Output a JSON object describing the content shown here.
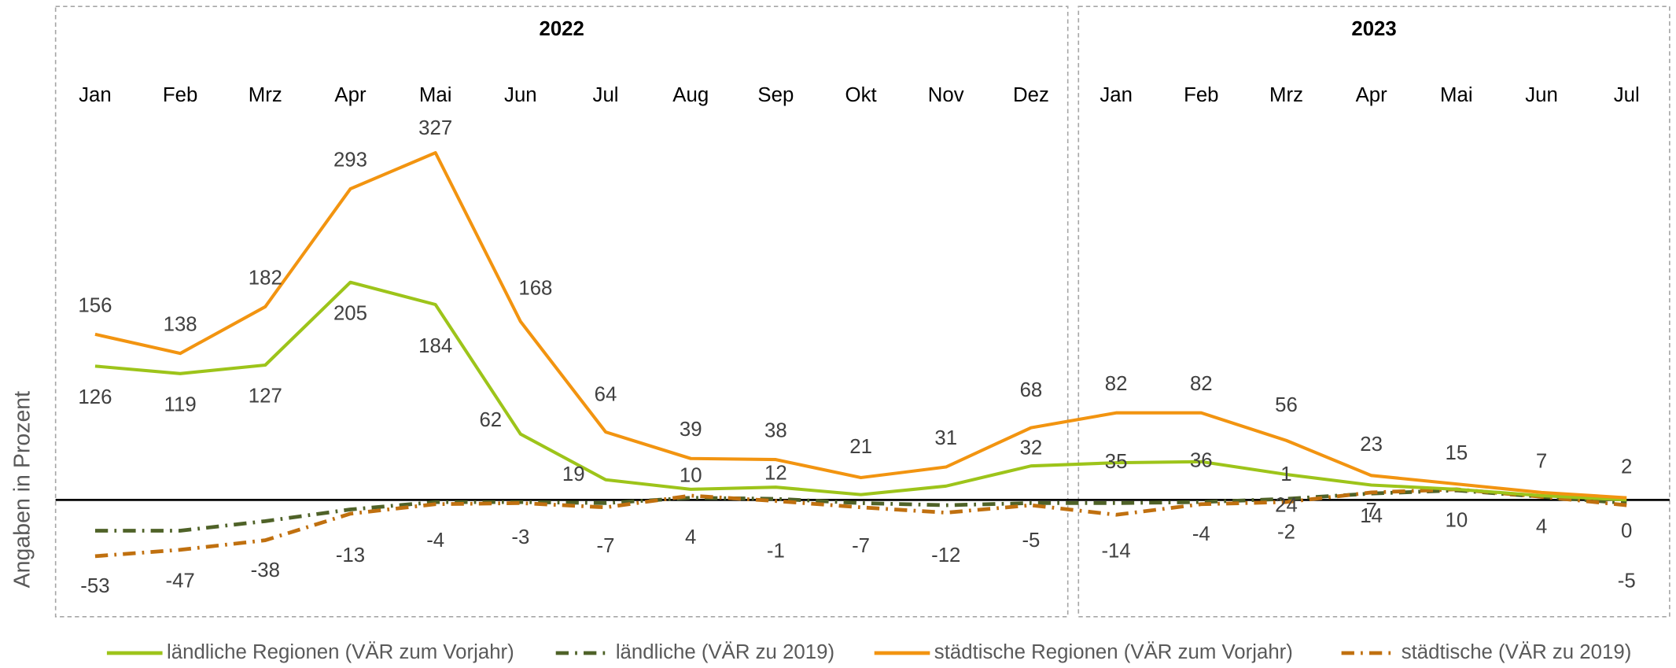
{
  "chart_data": {
    "type": "line",
    "y_axis_label": "Angaben in Prozent",
    "groups": [
      {
        "name": "2022",
        "categories": [
          "Jan",
          "Feb",
          "Mrz",
          "Apr",
          "Mai",
          "Jun",
          "Jul",
          "Aug",
          "Sep",
          "Okt",
          "Nov",
          "Dez"
        ]
      },
      {
        "name": "2023",
        "categories": [
          "Jan",
          "Feb",
          "Mrz",
          "Apr",
          "Mai",
          "Jun",
          "Jul"
        ]
      }
    ],
    "ylim": [
      -110,
      340
    ],
    "series": [
      {
        "name": "ländliche Regionen (VÄR zum Vorjahr)",
        "color": "#9dc41a",
        "dash": "solid",
        "values": [
          126,
          119,
          127,
          205,
          184,
          62,
          19,
          10,
          12,
          5,
          13,
          32,
          35,
          36,
          24,
          14,
          10,
          4,
          0
        ],
        "value_labels": [
          "126",
          "119",
          "127",
          "205",
          "184",
          "62",
          "19",
          "10",
          "12",
          null,
          null,
          "32",
          "35",
          "36",
          "24",
          "14",
          "10",
          "4",
          "0"
        ]
      },
      {
        "name": "ländliche (VÄR zu 2019)",
        "color": "#4f6228",
        "dash": "dashdot",
        "values": [
          -29,
          -29,
          -20,
          -9,
          -2,
          -2,
          -3,
          2,
          1,
          -3,
          -5,
          -3,
          -3,
          -2,
          1,
          6,
          9,
          3,
          -3
        ],
        "value_labels": [
          null,
          null,
          null,
          null,
          null,
          null,
          null,
          null,
          null,
          null,
          null,
          null,
          null,
          null,
          "1",
          null,
          null,
          null,
          null
        ]
      },
      {
        "name": "städtische Regionen (VÄR zum Vorjahr)",
        "color": "#f29410",
        "dash": "solid",
        "values": [
          156,
          138,
          182,
          293,
          327,
          168,
          64,
          39,
          38,
          21,
          31,
          68,
          82,
          82,
          56,
          23,
          15,
          7,
          2
        ],
        "value_labels": [
          "156",
          "138",
          "182",
          "293",
          "327",
          "168",
          "64",
          "39",
          "38",
          "21",
          "31",
          "68",
          "82",
          "82",
          "56",
          "23",
          "15",
          "7",
          "2"
        ]
      },
      {
        "name": "städtische (VÄR zu 2019)",
        "color": "#c0700f",
        "dash": "dashdot",
        "values": [
          -53,
          -47,
          -38,
          -13,
          -4,
          -3,
          -7,
          4,
          -1,
          -7,
          -12,
          -5,
          -14,
          -4,
          -2,
          7,
          10,
          3,
          -5
        ],
        "value_labels": [
          "-53",
          "-47",
          "-38",
          "-13",
          "-4",
          "-3",
          "-7",
          "4",
          "-1",
          "-7",
          "-12",
          "-5",
          "-14",
          "-4",
          "-2",
          "7",
          null,
          null,
          "-5"
        ]
      }
    ],
    "legend": "bottom"
  }
}
